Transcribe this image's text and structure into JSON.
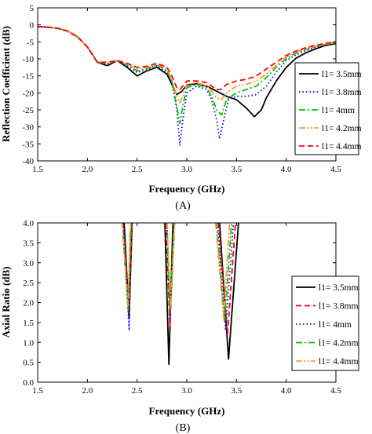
{
  "chart_data": [
    {
      "type": "line",
      "panel_label": "(A)",
      "xlabel": "Frequency (GHz)",
      "ylabel": "Reflection Coefficient (dB)",
      "xlim": [
        1.5,
        4.5
      ],
      "ylim": [
        -40,
        5
      ],
      "xticks": [
        1.5,
        2.0,
        2.5,
        3.0,
        3.5,
        4.0,
        4.5
      ],
      "xtick_labels": [
        "1.5",
        "2.0",
        "2.5",
        "3.0",
        "3.5",
        "4.0",
        "4.5"
      ],
      "yticks": [
        5,
        0,
        -5,
        -10,
        -15,
        -20,
        -25,
        -30,
        -35,
        -40
      ],
      "ytick_labels": [
        "5",
        "0",
        "-5",
        "-10",
        "-15",
        "-20",
        "-25",
        "-30",
        "-35",
        "-40"
      ],
      "legend_position": "right",
      "series": [
        {
          "name": "l1= 3.5mm",
          "color": "#000000",
          "dash": "solid",
          "x": [
            1.5,
            1.6,
            1.7,
            1.8,
            1.9,
            2.0,
            2.1,
            2.2,
            2.3,
            2.4,
            2.5,
            2.6,
            2.7,
            2.8,
            2.85,
            2.9,
            2.95,
            3.0,
            3.05,
            3.1,
            3.2,
            3.3,
            3.4,
            3.5,
            3.6,
            3.68,
            3.75,
            3.8,
            3.9,
            4.0,
            4.1,
            4.2,
            4.3,
            4.4,
            4.5
          ],
          "y": [
            -0.5,
            -0.7,
            -1.0,
            -1.8,
            -3.5,
            -6.5,
            -11.0,
            -12.0,
            -10.5,
            -12.5,
            -15.0,
            -13.5,
            -12.5,
            -14.5,
            -17.5,
            -20.5,
            -19.5,
            -17.8,
            -17.5,
            -17.3,
            -18.0,
            -19.5,
            -21.0,
            -22.0,
            -24.5,
            -27.0,
            -25.0,
            -21.5,
            -16.5,
            -12.5,
            -9.8,
            -8.2,
            -7.0,
            -6.0,
            -5.5
          ]
        },
        {
          "name": "l1= 3.8mm",
          "color": "#0000ff",
          "dash": "dot",
          "x": [
            1.5,
            1.6,
            1.7,
            1.8,
            1.9,
            2.0,
            2.1,
            2.2,
            2.3,
            2.4,
            2.5,
            2.6,
            2.7,
            2.8,
            2.85,
            2.9,
            2.93,
            2.96,
            3.0,
            3.1,
            3.2,
            3.25,
            3.3,
            3.33,
            3.37,
            3.42,
            3.5,
            3.6,
            3.7,
            3.8,
            3.9,
            4.0,
            4.1,
            4.2,
            4.3,
            4.4,
            4.5
          ],
          "y": [
            -0.5,
            -0.7,
            -1.0,
            -1.8,
            -3.5,
            -6.5,
            -11.0,
            -11.5,
            -10.5,
            -12.0,
            -14.0,
            -13.0,
            -12.0,
            -14.0,
            -17.0,
            -25.0,
            -35.5,
            -28.0,
            -20.0,
            -18.0,
            -19.0,
            -22.0,
            -28.0,
            -33.5,
            -28.0,
            -22.0,
            -21.0,
            -21.0,
            -20.5,
            -18.0,
            -14.0,
            -10.5,
            -8.8,
            -7.5,
            -6.5,
            -5.8,
            -5.3
          ]
        },
        {
          "name": "l1= 4mm",
          "color": "#00c800",
          "dash": "dashdot",
          "x": [
            1.5,
            1.6,
            1.7,
            1.8,
            1.9,
            2.0,
            2.1,
            2.2,
            2.3,
            2.4,
            2.5,
            2.6,
            2.7,
            2.8,
            2.85,
            2.9,
            2.93,
            2.96,
            3.0,
            3.1,
            3.2,
            3.25,
            3.3,
            3.35,
            3.4,
            3.5,
            3.6,
            3.7,
            3.8,
            3.9,
            4.0,
            4.1,
            4.2,
            4.3,
            4.4,
            4.5
          ],
          "y": [
            -0.5,
            -0.7,
            -1.0,
            -1.8,
            -3.5,
            -6.5,
            -11.0,
            -11.3,
            -10.5,
            -11.8,
            -13.5,
            -12.8,
            -11.8,
            -13.5,
            -16.5,
            -24.0,
            -29.0,
            -24.0,
            -18.5,
            -17.5,
            -18.5,
            -21.0,
            -25.0,
            -26.5,
            -22.0,
            -20.0,
            -19.0,
            -18.0,
            -15.5,
            -12.5,
            -10.0,
            -8.3,
            -7.2,
            -6.3,
            -5.7,
            -5.2
          ]
        },
        {
          "name": "l1= 4.2mm",
          "color": "#ff9933",
          "dash": "dashdotdot",
          "x": [
            1.5,
            1.6,
            1.7,
            1.8,
            1.9,
            2.0,
            2.1,
            2.2,
            2.3,
            2.4,
            2.5,
            2.6,
            2.7,
            2.8,
            2.85,
            2.9,
            2.93,
            2.96,
            3.0,
            3.1,
            3.2,
            3.25,
            3.3,
            3.35,
            3.4,
            3.5,
            3.6,
            3.7,
            3.8,
            3.9,
            4.0,
            4.1,
            4.2,
            4.3,
            4.4,
            4.5
          ],
          "y": [
            -0.5,
            -0.7,
            -1.0,
            -1.8,
            -3.5,
            -6.5,
            -11.0,
            -11.2,
            -10.5,
            -11.5,
            -13.0,
            -12.5,
            -11.5,
            -13.0,
            -16.0,
            -21.0,
            -23.0,
            -21.0,
            -17.5,
            -17.0,
            -18.0,
            -19.5,
            -21.5,
            -22.0,
            -20.0,
            -18.0,
            -17.5,
            -16.5,
            -14.5,
            -11.8,
            -9.5,
            -8.0,
            -7.0,
            -6.2,
            -5.6,
            -5.2
          ]
        },
        {
          "name": "l1= 4.4mm",
          "color": "#ff0000",
          "dash": "dash",
          "x": [
            1.5,
            1.6,
            1.7,
            1.8,
            1.9,
            2.0,
            2.1,
            2.2,
            2.3,
            2.4,
            2.5,
            2.6,
            2.7,
            2.8,
            2.85,
            2.9,
            2.93,
            2.96,
            3.0,
            3.1,
            3.2,
            3.25,
            3.3,
            3.35,
            3.4,
            3.5,
            3.6,
            3.7,
            3.8,
            3.9,
            4.0,
            4.1,
            4.2,
            4.3,
            4.4,
            4.5
          ],
          "y": [
            -0.5,
            -0.7,
            -1.0,
            -1.8,
            -3.5,
            -6.5,
            -11.0,
            -11.0,
            -10.5,
            -11.3,
            -12.5,
            -12.2,
            -11.3,
            -12.5,
            -15.0,
            -18.5,
            -19.0,
            -18.0,
            -16.5,
            -16.5,
            -17.0,
            -18.0,
            -19.0,
            -19.0,
            -17.5,
            -16.5,
            -16.0,
            -15.0,
            -13.0,
            -11.0,
            -9.0,
            -7.7,
            -6.7,
            -6.0,
            -5.4,
            -5.0
          ]
        }
      ]
    },
    {
      "type": "line",
      "panel_label": "(B)",
      "xlabel": "Frequency (GHz)",
      "ylabel": "Axial Ratio (dB)",
      "xlim": [
        1.5,
        4.5
      ],
      "ylim": [
        0.0,
        4.0
      ],
      "xticks": [
        1.5,
        2.0,
        2.5,
        3.0,
        3.5,
        4.0,
        4.5
      ],
      "xtick_labels": [
        "1.5",
        "2.0",
        "2.5",
        "3.0",
        "3.5",
        "4.0",
        "4.5"
      ],
      "yticks": [
        0.0,
        0.5,
        1.0,
        1.5,
        2.0,
        2.5,
        3.0,
        3.5,
        4.0
      ],
      "ytick_labels": [
        "0.0",
        "0.5",
        "1.0",
        "1.5",
        "2.0",
        "2.5",
        "3.0",
        "3.5",
        "4.0"
      ],
      "legend_position": "right",
      "series": [
        {
          "name": "l1= 3.5mm",
          "color": "#000000",
          "dash": "solid",
          "segments": [
            {
              "x": [
                2.37,
                2.42,
                2.45
              ],
              "y": [
                4.0,
                1.6,
                4.0
              ]
            },
            {
              "x": [
                2.78,
                2.82,
                2.86
              ],
              "y": [
                4.0,
                0.45,
                4.0
              ]
            },
            {
              "x": [
                3.33,
                3.42,
                3.52
              ],
              "y": [
                4.0,
                0.58,
                4.0
              ]
            }
          ]
        },
        {
          "name": "l1= 3.8mm",
          "color": "#ff0000",
          "dash": "dash",
          "segments": [
            {
              "x": [
                2.36,
                2.42,
                2.45
              ],
              "y": [
                4.0,
                1.75,
                4.0
              ]
            },
            {
              "x": [
                2.79,
                2.83,
                2.87
              ],
              "y": [
                4.0,
                1.4,
                4.0
              ]
            },
            {
              "x": [
                3.32,
                3.41,
                3.49
              ],
              "y": [
                4.0,
                1.2,
                4.0
              ]
            }
          ]
        },
        {
          "name": "l1= 4mm",
          "color": "#0000ff",
          "dash": "dot",
          "segments": [
            {
              "x": [
                2.36,
                2.42,
                2.44
              ],
              "y": [
                4.0,
                1.3,
                4.0
              ]
            },
            {
              "x": [
                2.8,
                2.83,
                2.87
              ],
              "y": [
                4.0,
                1.55,
                4.0
              ]
            },
            {
              "x": [
                3.31,
                3.39,
                3.47
              ],
              "y": [
                4.0,
                1.3,
                4.0
              ]
            }
          ]
        },
        {
          "name": "l1= 4.2mm",
          "color": "#00c800",
          "dash": "dashdot",
          "segments": [
            {
              "x": [
                2.35,
                2.41,
                2.44
              ],
              "y": [
                4.0,
                1.8,
                4.0
              ]
            },
            {
              "x": [
                2.8,
                2.83,
                2.87
              ],
              "y": [
                4.0,
                1.75,
                4.0
              ]
            },
            {
              "x": [
                3.3,
                3.38,
                3.45
              ],
              "y": [
                4.0,
                1.5,
                4.0
              ]
            }
          ]
        },
        {
          "name": "l1= 4.4mm",
          "color": "#ff9933",
          "dash": "dashdotdot",
          "segments": [
            {
              "x": [
                2.35,
                2.41,
                2.43
              ],
              "y": [
                4.0,
                1.9,
                4.0
              ]
            },
            {
              "x": [
                2.8,
                2.84,
                2.88
              ],
              "y": [
                4.0,
                1.85,
                4.0
              ]
            },
            {
              "x": [
                3.29,
                3.37,
                3.43
              ],
              "y": [
                4.0,
                1.6,
                4.0
              ]
            }
          ]
        }
      ]
    }
  ]
}
